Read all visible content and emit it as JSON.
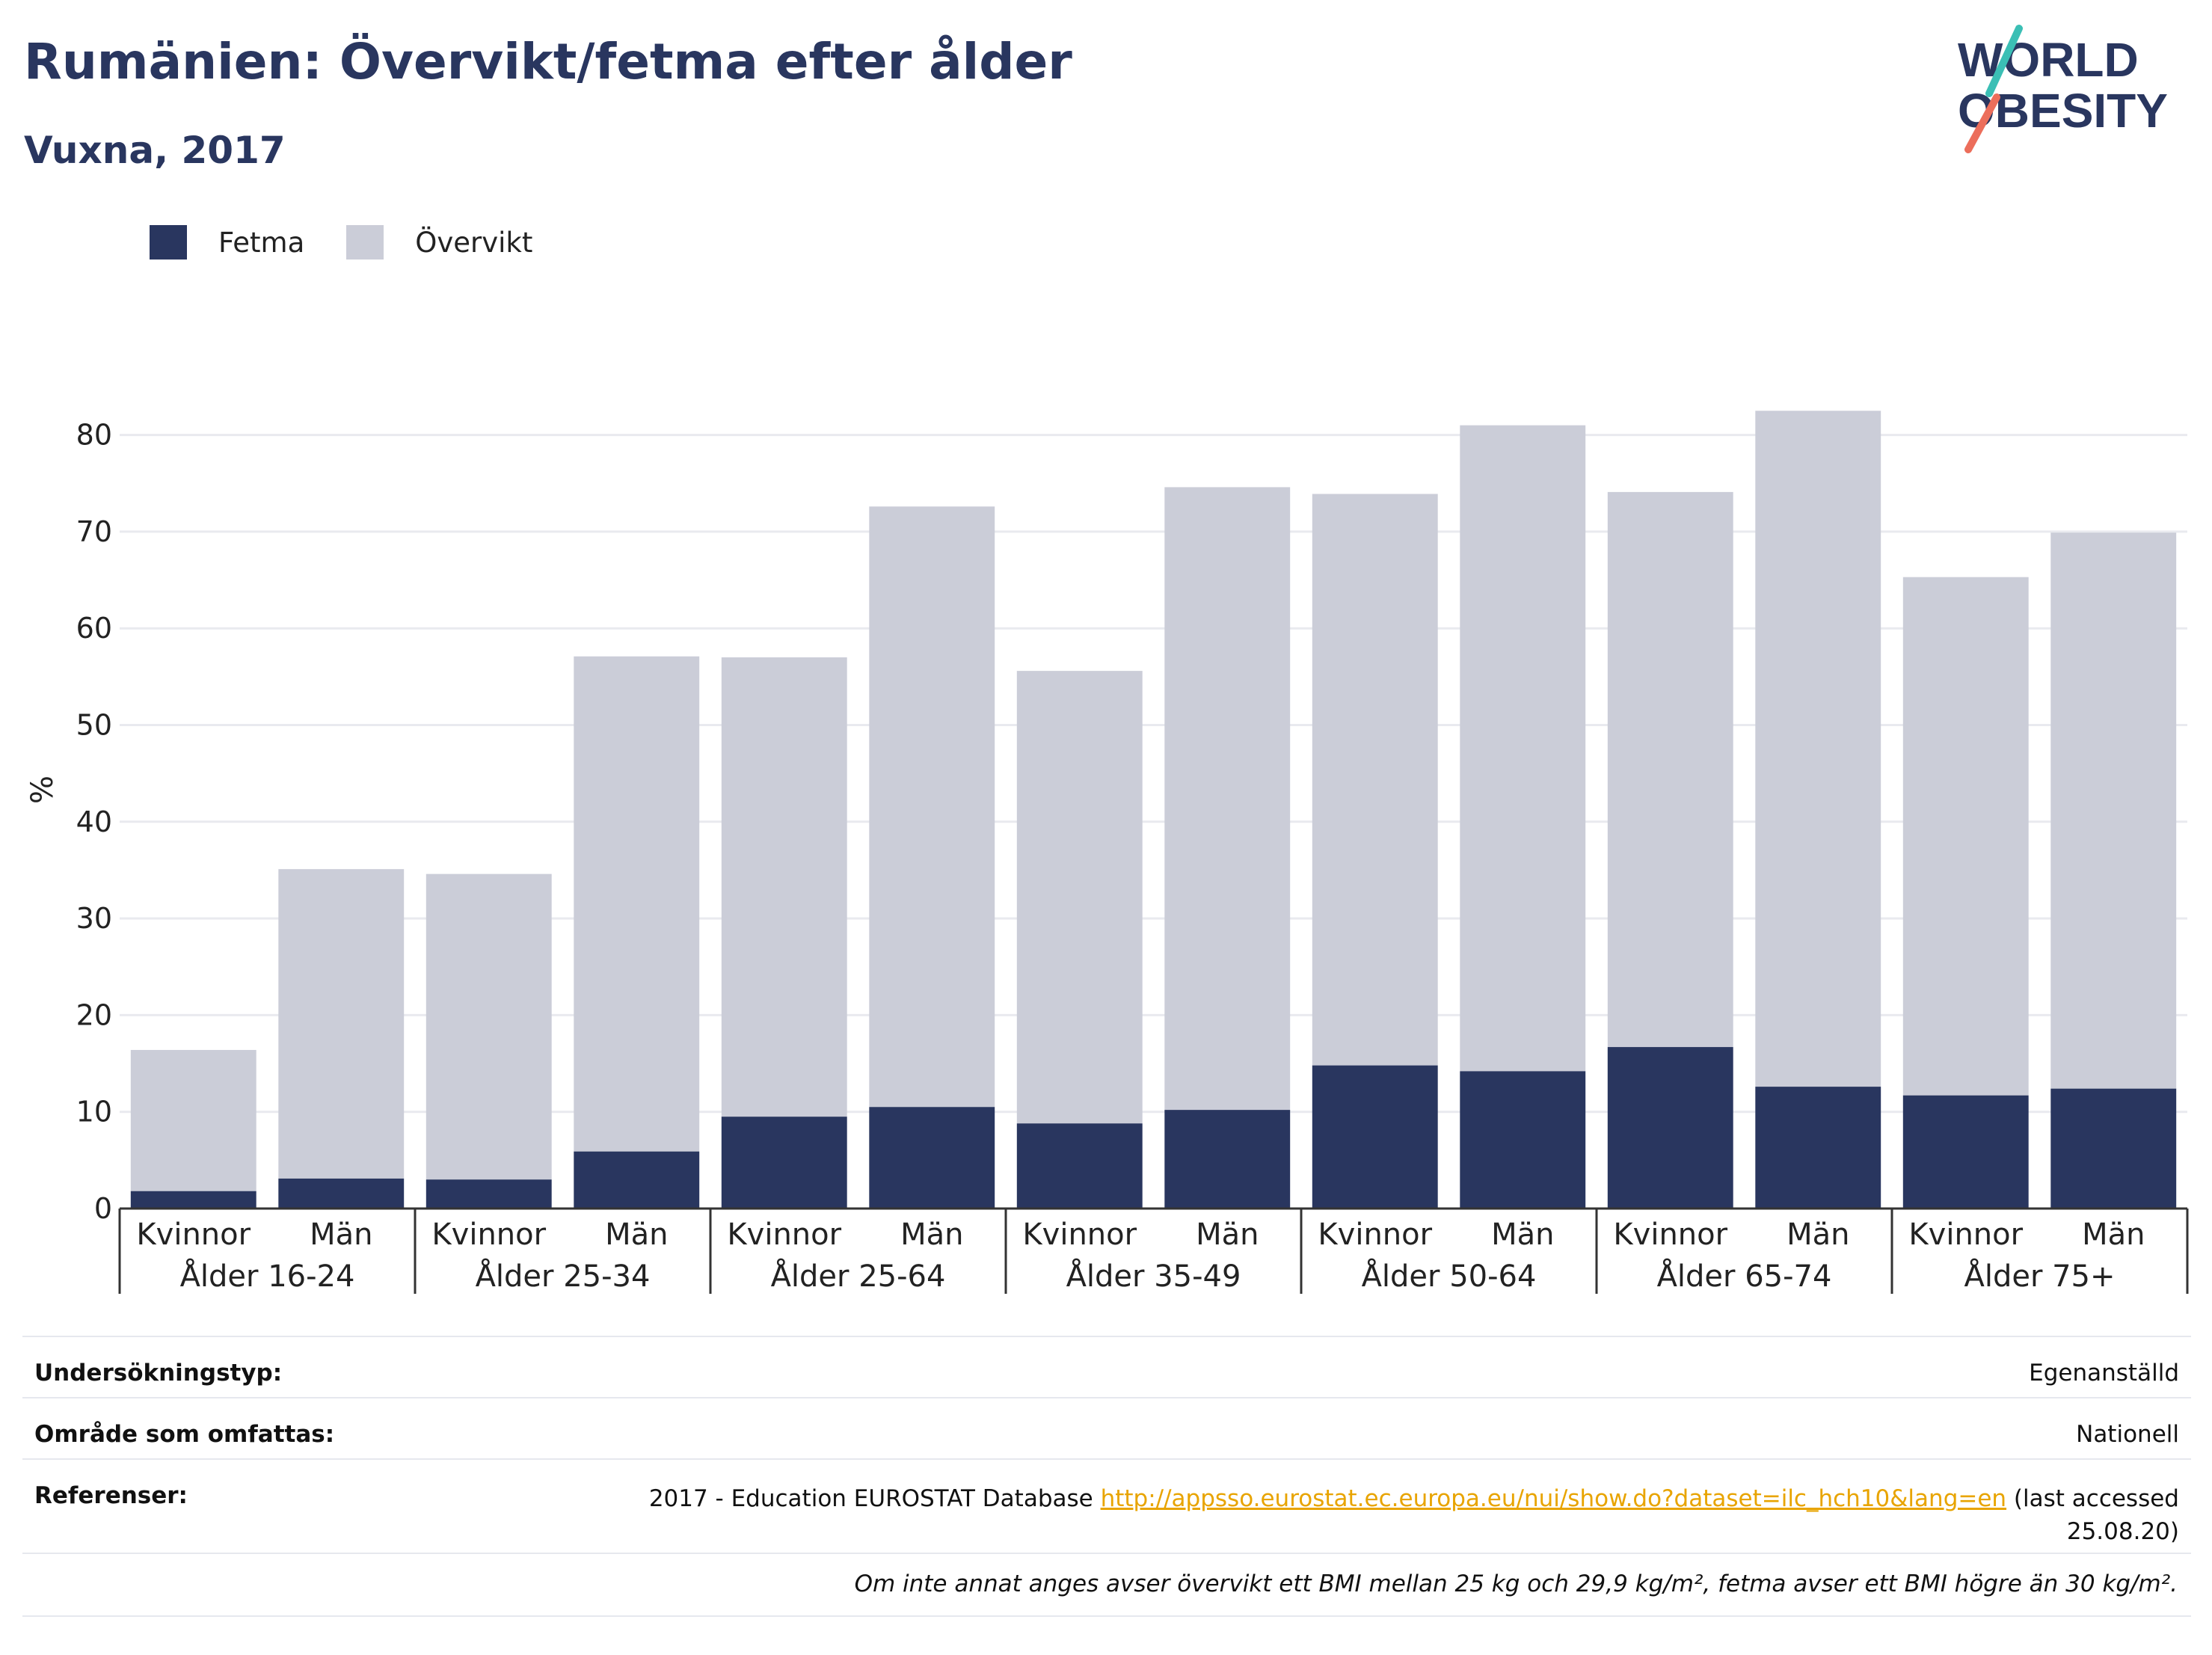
{
  "header": {
    "title": "Rumänien: Övervikt/fetma efter ålder",
    "subtitle": "Vuxna, 2017",
    "logo_line1": "WORLD",
    "logo_line2": "OBESITY"
  },
  "colors": {
    "fetma": "#29365f",
    "overvikt": "#cbcdd8",
    "grid": "#e9eaef",
    "axis": "#333333",
    "link": "#e8a400"
  },
  "chart_data": {
    "type": "bar",
    "stacked": true,
    "ylabel": "%",
    "ylim": [
      0,
      88
    ],
    "yticks": [
      0,
      10,
      20,
      30,
      40,
      50,
      60,
      70,
      80
    ],
    "legend": [
      "Fetma",
      "Övervikt"
    ],
    "legend_position": "top-left",
    "groups": [
      "Ålder 16-24",
      "Ålder 25-34",
      "Ålder 25-64",
      "Ålder 35-49",
      "Ålder 50-64",
      "Ålder 65-74",
      "Ålder 75+"
    ],
    "categories": [
      "Kvinnor",
      "Män",
      "Kvinnor",
      "Män",
      "Kvinnor",
      "Män",
      "Kvinnor",
      "Män",
      "Kvinnor",
      "Män",
      "Kvinnor",
      "Män",
      "Kvinnor",
      "Män"
    ],
    "series": [
      {
        "name": "Fetma",
        "values": [
          1.8,
          3.1,
          3.0,
          5.9,
          9.5,
          10.5,
          8.8,
          10.2,
          14.8,
          14.2,
          16.7,
          12.6,
          11.7,
          12.4
        ]
      },
      {
        "name": "Övervikt",
        "values": [
          14.6,
          32.0,
          31.6,
          51.2,
          47.5,
          62.1,
          46.8,
          64.4,
          59.1,
          66.8,
          57.4,
          69.9,
          53.6,
          57.5
        ]
      }
    ],
    "totals": [
      16.4,
      35.1,
      34.6,
      57.1,
      57.0,
      72.6,
      55.6,
      74.6,
      73.9,
      81.0,
      74.1,
      82.5,
      65.3,
      69.9
    ],
    "grid": true
  },
  "info": {
    "survey_label": "Undersökningstyp:",
    "survey_value": "Egenanställd",
    "area_label": "Område som omfattas:",
    "area_value": "Nationell",
    "ref_label": "Referenser:",
    "ref_prefix": "2017 - Education EUROSTAT Database ",
    "ref_link": "http://appsso.eurostat.ec.europa.eu/nui/show.do?dataset=ilc_hch10&lang=en",
    "ref_suffix": " (last accessed",
    "ref_date": "25.08.20)",
    "note": "Om inte annat anges avser övervikt ett BMI mellan 25 kg och 29,9 kg/m², fetma avser ett BMI högre än 30 kg/m²."
  }
}
